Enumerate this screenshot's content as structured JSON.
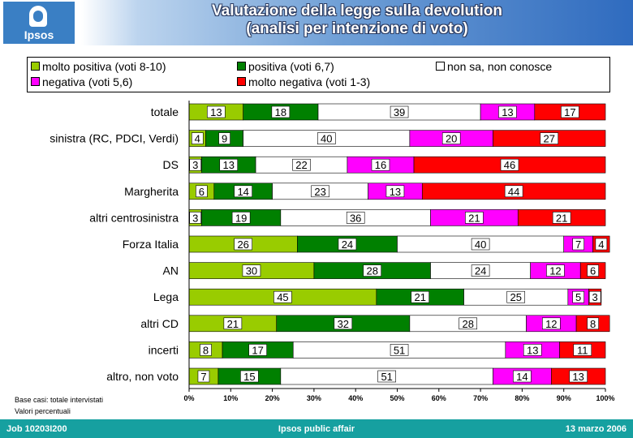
{
  "header": {
    "logo_text": "Ipsos",
    "title_line1": "Valutazione della legge sulla devolution",
    "title_line2": "(analisi per intenzione di voto)"
  },
  "colors": {
    "molto_positiva": "#99cc00",
    "positiva": "#008000",
    "non_sa": "#ffffff",
    "negativa": "#ff00ff",
    "molto_negativa": "#ff0000",
    "header_blue": "#2f6bbf",
    "footer_teal": "#16a0a0"
  },
  "chart_data": {
    "type": "bar",
    "orientation": "horizontal",
    "stacked": true,
    "title": "Valutazione della legge sulla devolution (analisi per intenzione di voto)",
    "categories": [
      "totale",
      "sinistra (RC, PDCI, Verdi)",
      "DS",
      "Margherita",
      "altri centrosinistra",
      "Forza Italia",
      "AN",
      "Lega",
      "altri CD",
      "incerti",
      "altro, non voto"
    ],
    "series": [
      {
        "name": "molto positiva (voti 8-10)",
        "color": "#99cc00",
        "values": [
          13,
          4,
          3,
          6,
          3,
          26,
          30,
          45,
          21,
          8,
          7
        ]
      },
      {
        "name": "positiva (voti 6,7)",
        "color": "#008000",
        "values": [
          18,
          9,
          13,
          14,
          19,
          24,
          28,
          21,
          32,
          17,
          15
        ]
      },
      {
        "name": "non sa, non conosce",
        "color": "#ffffff",
        "values": [
          39,
          40,
          22,
          23,
          36,
          40,
          24,
          25,
          28,
          51,
          51
        ]
      },
      {
        "name": "negativa (voti 5,6)",
        "color": "#ff00ff",
        "values": [
          13,
          20,
          16,
          13,
          21,
          7,
          12,
          5,
          12,
          13,
          14
        ]
      },
      {
        "name": "molto negativa (voti 1-3)",
        "color": "#ff0000",
        "values": [
          17,
          27,
          46,
          44,
          21,
          4,
          6,
          3,
          8,
          11,
          13
        ]
      }
    ],
    "xlim": [
      0,
      100
    ],
    "xticks": [
      "0%",
      "10%",
      "20%",
      "30%",
      "40%",
      "50%",
      "60%",
      "70%",
      "80%",
      "90%",
      "100%"
    ],
    "legend": "top"
  },
  "legend": {
    "molto_positiva": "molto positiva (voti 8-10)",
    "positiva": "positiva (voti 6,7)",
    "non_sa": "non sa, non conosce",
    "negativa": "negativa (voti 5,6)",
    "molto_negativa": "molto negativa (voti 1-3)"
  },
  "footnotes": {
    "base": "Base casi: totale intervistati",
    "unit": "Valori percentuali"
  },
  "footer": {
    "job": "Job 10203I200",
    "center": "Ipsos public affair",
    "date": "13 marzo 2006"
  }
}
